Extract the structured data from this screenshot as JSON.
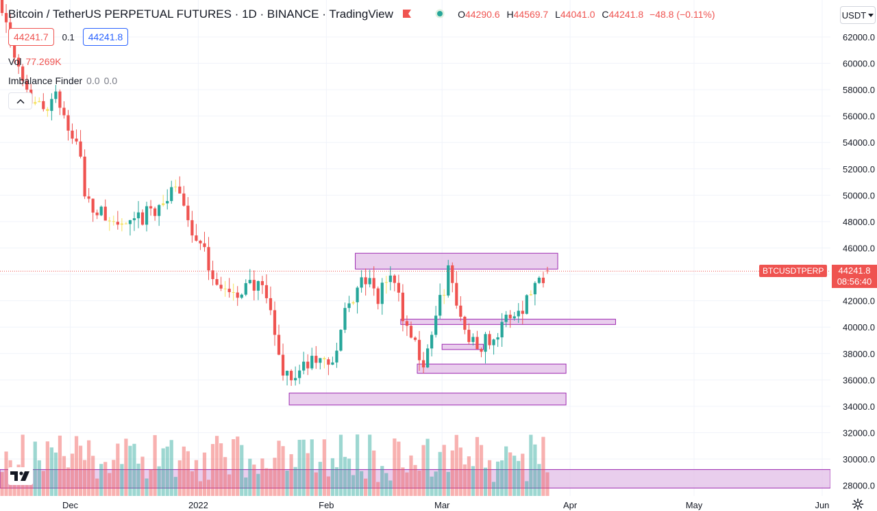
{
  "header": {
    "symbol_name": "Bitcoin / TetherUS PERPETUAL FUTURES",
    "interval": "1D",
    "exchange": "BINANCE",
    "source": "TradingView",
    "ohlc": {
      "open_label": "O",
      "open": "44290.6",
      "high_label": "H",
      "high": "44569.7",
      "low_label": "L",
      "low": "44041.0",
      "close_label": "C",
      "close": "44241.8",
      "change": "−48.8 (−0.11%)"
    }
  },
  "trade": {
    "sell_price": "44241.7",
    "spread": "0.1",
    "buy_price": "44241.8"
  },
  "volume": {
    "label": "Vol",
    "value": "77.269K"
  },
  "indicator": {
    "name": "Imbalance Finder",
    "v1": "0.0",
    "v2": "0.0"
  },
  "currency": {
    "label": "USDT"
  },
  "last_price": {
    "symbol": "BTCUSDTPERP",
    "price": "44241.8",
    "countdown": "08:56:40"
  },
  "colors": {
    "up": "#26a69a",
    "down": "#ef5350",
    "doji": "#f5e15b",
    "zone_fill": "#e1bee7",
    "zone_stroke": "#9c27b0"
  },
  "chart_data": {
    "type": "candlestick",
    "y_axis": {
      "ticks": [
        28000,
        30000,
        32000,
        34000,
        36000,
        38000,
        40000,
        42000,
        44000,
        46000,
        48000,
        50000,
        52000,
        54000,
        56000,
        58000,
        60000,
        62000
      ],
      "tick_labels": [
        "28000.0",
        "30000.0",
        "32000.0",
        "34000.0",
        "36000.0",
        "38000.0",
        "40000.0",
        "42000.0",
        "44000.0",
        "46000.0",
        "48000.0",
        "50000.0",
        "52000.0",
        "54000.0",
        "56000.0",
        "58000.0",
        "60000.0",
        "62000.0"
      ],
      "range": [
        27200,
        64800
      ]
    },
    "x_axis": {
      "start_date": "2021-11-14",
      "end_date": "2022-06-03",
      "labels": [
        {
          "text": "Dec",
          "date": "2021-12-01"
        },
        {
          "text": "2022",
          "date": "2022-01-01"
        },
        {
          "text": "Feb",
          "date": "2022-02-01"
        },
        {
          "text": "Mar",
          "date": "2022-03-01"
        },
        {
          "text": "Apr",
          "date": "2022-04-01"
        },
        {
          "text": "May",
          "date": "2022-05-01"
        },
        {
          "text": "Jun",
          "date": "2022-06-01"
        }
      ]
    },
    "first_candle_date": "2021-11-14",
    "close_path": [
      {
        "date": "2021-11-14",
        "close": 64500
      },
      {
        "date": "2021-11-18",
        "close": 60000
      },
      {
        "date": "2021-11-22",
        "close": 56500
      },
      {
        "date": "2021-11-27",
        "close": 57300
      },
      {
        "date": "2021-12-03",
        "close": 53500
      },
      {
        "date": "2021-12-04",
        "close": 49500
      },
      {
        "date": "2021-12-10",
        "close": 48000
      },
      {
        "date": "2021-12-15",
        "close": 47500
      },
      {
        "date": "2021-12-21",
        "close": 49000
      },
      {
        "date": "2021-12-27",
        "close": 50500
      },
      {
        "date": "2021-12-30",
        "close": 47300
      },
      {
        "date": "2022-01-05",
        "close": 43500
      },
      {
        "date": "2022-01-10",
        "close": 41800
      },
      {
        "date": "2022-01-12",
        "close": 43800
      },
      {
        "date": "2022-01-17",
        "close": 42200
      },
      {
        "date": "2022-01-21",
        "close": 36700
      },
      {
        "date": "2022-01-23",
        "close": 36200
      },
      {
        "date": "2022-01-28",
        "close": 37300
      },
      {
        "date": "2022-02-03",
        "close": 37600
      },
      {
        "date": "2022-02-05",
        "close": 41500
      },
      {
        "date": "2022-02-10",
        "close": 43600
      },
      {
        "date": "2022-02-13",
        "close": 42200
      },
      {
        "date": "2022-02-16",
        "close": 44100
      },
      {
        "date": "2022-02-20",
        "close": 40100
      },
      {
        "date": "2022-02-24",
        "close": 37200
      },
      {
        "date": "2022-02-28",
        "close": 41800
      },
      {
        "date": "2022-03-02",
        "close": 44200
      },
      {
        "date": "2022-03-06",
        "close": 39500
      },
      {
        "date": "2022-03-10",
        "close": 38800
      },
      {
        "date": "2022-03-14",
        "close": 39500
      },
      {
        "date": "2022-03-17",
        "close": 40900
      },
      {
        "date": "2022-03-20",
        "close": 41600
      },
      {
        "date": "2022-03-24",
        "close": 43800
      },
      {
        "date": "2022-03-26",
        "close": 44241.8
      }
    ],
    "demand_zones": [
      {
        "from": "2022-02-08",
        "to": "2022-03-29",
        "low": 44400,
        "high": 45600
      },
      {
        "from": "2022-02-19",
        "to": "2022-04-12",
        "low": 40200,
        "high": 40600
      },
      {
        "from": "2022-03-01",
        "to": "2022-03-11",
        "low": 38300,
        "high": 38700
      },
      {
        "from": "2022-02-23",
        "to": "2022-03-31",
        "low": 36500,
        "high": 37200
      },
      {
        "from": "2022-01-23",
        "to": "2022-03-31",
        "low": 34100,
        "high": 35000
      },
      {
        "from": "2021-11-14",
        "to": "2022-06-03",
        "low": 27800,
        "high": 29200
      }
    ],
    "volume_series": "Vol"
  }
}
